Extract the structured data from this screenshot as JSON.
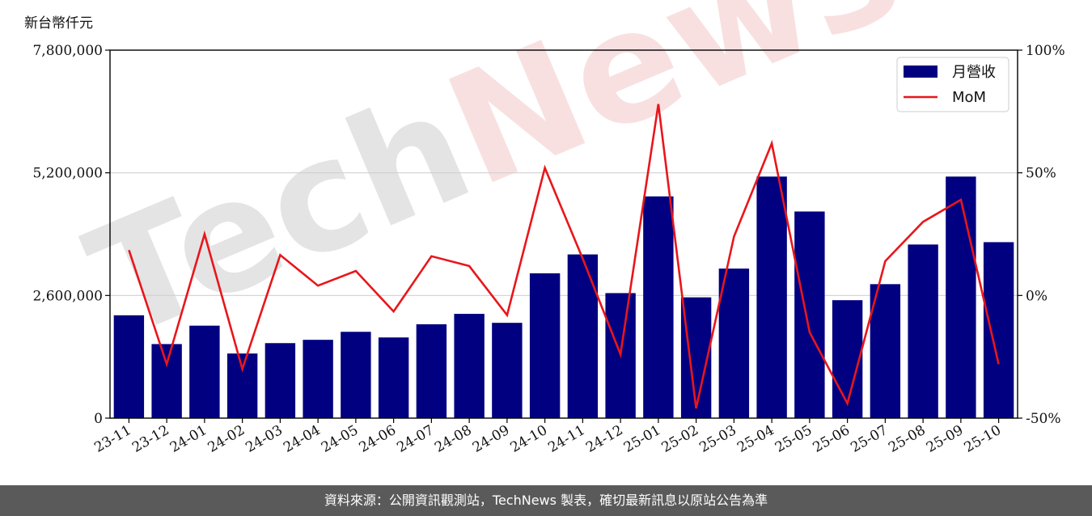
{
  "chart_data": {
    "type": "bar",
    "ylabel": "新台幣仟元",
    "categories": [
      "23-11",
      "23-12",
      "24-01",
      "24-02",
      "24-03",
      "24-04",
      "24-05",
      "24-06",
      "24-07",
      "24-08",
      "24-09",
      "24-10",
      "24-11",
      "24-12",
      "25-01",
      "25-02",
      "25-03",
      "25-04",
      "25-05",
      "25-06",
      "25-07",
      "25-08",
      "25-09",
      "25-10"
    ],
    "series": [
      {
        "name": "月營收",
        "type": "bar",
        "axis": "left",
        "color": "#000080",
        "values": [
          2180000,
          1570000,
          1960000,
          1370000,
          1590000,
          1660000,
          1830000,
          1710000,
          1990000,
          2210000,
          2020000,
          3070000,
          3470000,
          2650000,
          4700000,
          2560000,
          3170000,
          5120000,
          4380000,
          2500000,
          2840000,
          3680000,
          5120000,
          3730000
        ]
      },
      {
        "name": "MoM",
        "type": "line",
        "axis": "right",
        "color": "#e8161b",
        "values": [
          18.5,
          -28,
          25,
          -30,
          16.5,
          4,
          10,
          -6.5,
          16,
          12,
          -8,
          52,
          15,
          -24,
          78,
          -46,
          24,
          62,
          -15,
          -44,
          14,
          30,
          39,
          -28
        ]
      }
    ],
    "ylim_left": [
      0,
      7800000
    ],
    "yticks_left": [
      {
        "value": 0,
        "label": "0"
      },
      {
        "value": 2600000,
        "label": "2,600,000"
      },
      {
        "value": 5200000,
        "label": "5,200,000"
      },
      {
        "value": 7800000,
        "label": "7,800,000"
      }
    ],
    "ylim_right": [
      -50,
      100
    ],
    "yticks_right": [
      {
        "value": -50,
        "label": "-50%"
      },
      {
        "value": 0,
        "label": "0%"
      },
      {
        "value": 50,
        "label": "50%"
      },
      {
        "value": 100,
        "label": "100%"
      }
    ],
    "grid": "horizontal",
    "legend": "top-right"
  },
  "watermark": {
    "text": "TechNews",
    "color_dark": "#cfcfcf",
    "color_accent": "#f3c7c9"
  },
  "footer": {
    "text": "資料來源：公開資訊觀測站，TechNews 製表，確切最新訊息以原站公告為準"
  }
}
